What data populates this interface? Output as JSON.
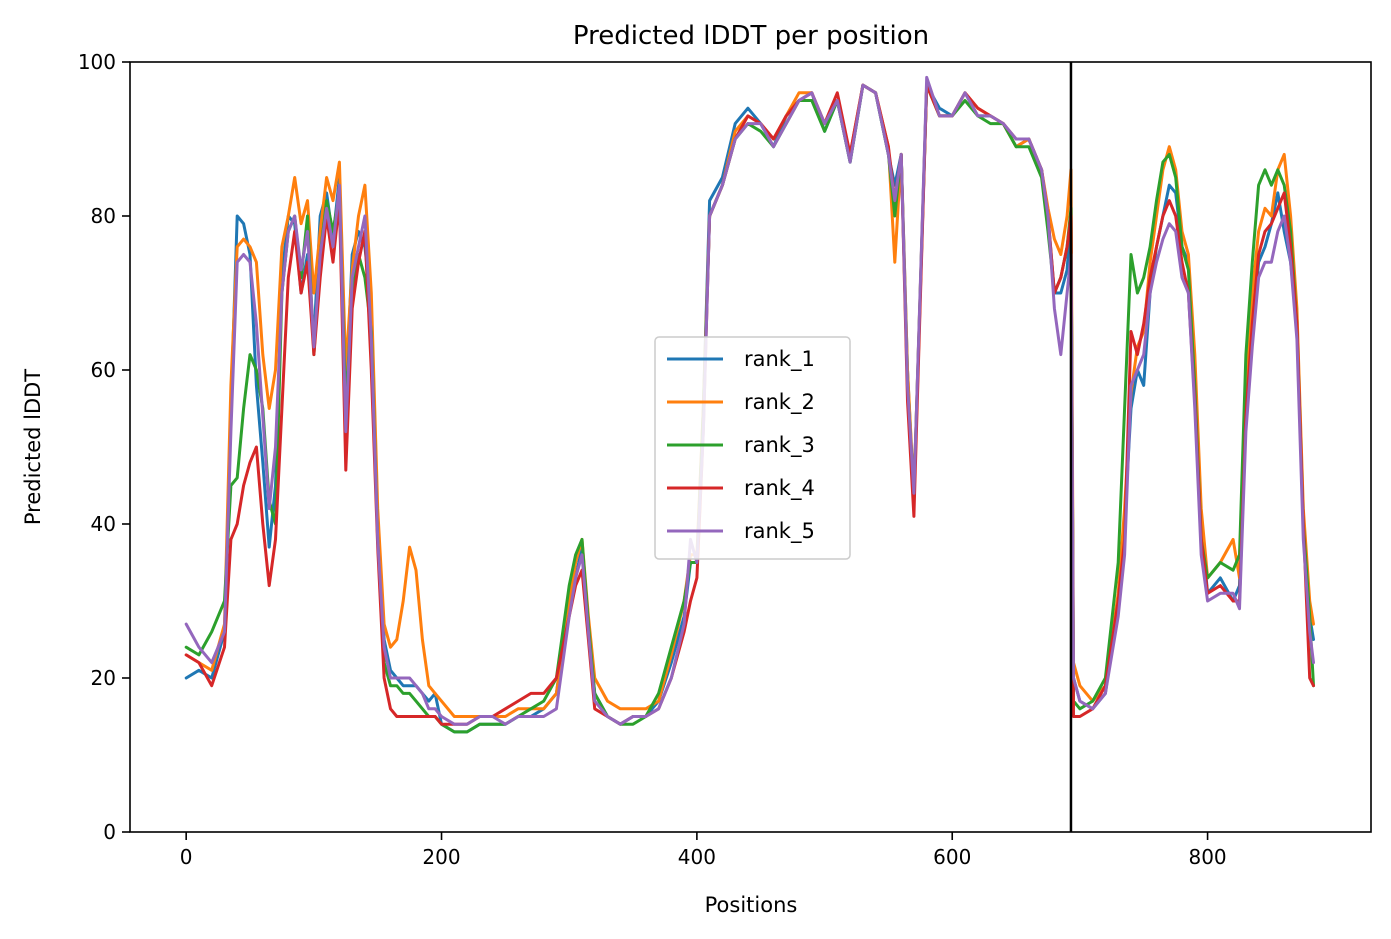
{
  "chart_data": {
    "type": "line",
    "title": "Predicted lDDT per position",
    "xlabel": "Positions",
    "ylabel": "Predicted lDDT",
    "xlim": [
      -44,
      928
    ],
    "ylim": [
      0,
      100
    ],
    "xticks": [
      0,
      200,
      400,
      600,
      800
    ],
    "yticks": [
      0,
      20,
      40,
      60,
      80,
      100
    ],
    "grid": false,
    "legend_position": "center",
    "vline_x": 693,
    "series": [
      {
        "name": "rank_1",
        "color": "#1f77b4",
        "x": [
          0,
          10,
          20,
          30,
          35,
          40,
          45,
          50,
          55,
          60,
          65,
          70,
          75,
          80,
          85,
          90,
          95,
          100,
          105,
          110,
          115,
          120,
          125,
          130,
          135,
          140,
          145,
          150,
          155,
          160,
          165,
          170,
          175,
          180,
          185,
          190,
          195,
          200,
          210,
          220,
          230,
          240,
          250,
          260,
          270,
          280,
          290,
          300,
          305,
          310,
          315,
          320,
          330,
          340,
          350,
          360,
          370,
          380,
          390,
          395,
          400,
          405,
          410,
          420,
          430,
          440,
          450,
          460,
          470,
          480,
          490,
          500,
          510,
          520,
          530,
          540,
          550,
          555,
          560,
          565,
          570,
          580,
          590,
          600,
          610,
          620,
          630,
          640,
          650,
          660,
          670,
          675,
          680,
          685,
          690,
          693,
          695,
          700,
          710,
          720,
          730,
          735,
          740,
          745,
          750,
          755,
          760,
          765,
          770,
          775,
          780,
          785,
          790,
          795,
          800,
          810,
          820,
          825,
          830,
          835,
          840,
          845,
          850,
          855,
          860,
          865,
          870,
          875,
          880,
          883
        ],
        "values": [
          20,
          21,
          20,
          26,
          55,
          80,
          79,
          75,
          58,
          48,
          37,
          45,
          72,
          80,
          79,
          70,
          75,
          64,
          80,
          83,
          77,
          85,
          56,
          75,
          78,
          76,
          68,
          40,
          25,
          21,
          20,
          19,
          19,
          19,
          18,
          17,
          18,
          14,
          13,
          13,
          14,
          14,
          14,
          15,
          15,
          16,
          18,
          30,
          33,
          37,
          26,
          18,
          15,
          14,
          15,
          15,
          17,
          22,
          28,
          35,
          35,
          55,
          82,
          85,
          92,
          94,
          92,
          89,
          93,
          95,
          96,
          91,
          95,
          87,
          97,
          96,
          88,
          84,
          88,
          60,
          43,
          97,
          94,
          93,
          96,
          93,
          93,
          92,
          89,
          90,
          86,
          80,
          70,
          70,
          73,
          80,
          20,
          17,
          16,
          18,
          30,
          40,
          55,
          60,
          58,
          70,
          76,
          80,
          84,
          83,
          76,
          74,
          60,
          40,
          31,
          33,
          30,
          32,
          55,
          65,
          74,
          76,
          79,
          83,
          78,
          74,
          66,
          40,
          28,
          25
        ]
      },
      {
        "name": "rank_2",
        "color": "#ff7f0e",
        "x": [
          0,
          10,
          20,
          30,
          35,
          40,
          45,
          50,
          55,
          60,
          65,
          70,
          75,
          80,
          85,
          90,
          95,
          100,
          105,
          110,
          115,
          120,
          125,
          130,
          135,
          140,
          145,
          150,
          155,
          160,
          165,
          170,
          175,
          180,
          185,
          190,
          195,
          200,
          210,
          220,
          230,
          240,
          250,
          260,
          270,
          280,
          290,
          300,
          305,
          310,
          315,
          320,
          330,
          340,
          350,
          360,
          370,
          380,
          390,
          395,
          400,
          405,
          410,
          420,
          430,
          440,
          450,
          460,
          470,
          480,
          490,
          500,
          510,
          520,
          530,
          540,
          550,
          555,
          560,
          565,
          570,
          580,
          590,
          600,
          610,
          620,
          630,
          640,
          650,
          660,
          670,
          675,
          680,
          685,
          690,
          693,
          695,
          700,
          710,
          720,
          730,
          735,
          740,
          745,
          750,
          755,
          760,
          765,
          770,
          775,
          780,
          785,
          790,
          795,
          800,
          810,
          820,
          825,
          830,
          835,
          840,
          845,
          850,
          855,
          860,
          865,
          870,
          875,
          880,
          883
        ],
        "values": [
          23,
          22,
          21,
          27,
          58,
          76,
          77,
          76,
          74,
          62,
          55,
          60,
          76,
          80,
          85,
          79,
          82,
          70,
          78,
          85,
          82,
          87,
          60,
          73,
          80,
          84,
          70,
          42,
          27,
          24,
          25,
          30,
          37,
          34,
          25,
          19,
          18,
          17,
          15,
          15,
          15,
          15,
          15,
          16,
          16,
          16,
          18,
          30,
          35,
          38,
          28,
          20,
          17,
          16,
          16,
          16,
          17,
          23,
          30,
          36,
          36,
          55,
          80,
          84,
          91,
          93,
          92,
          90,
          93,
          96,
          96,
          92,
          95,
          88,
          97,
          96,
          89,
          74,
          88,
          60,
          44,
          97,
          93,
          93,
          96,
          94,
          93,
          92,
          89,
          90,
          86,
          81,
          77,
          75,
          80,
          86,
          22,
          19,
          17,
          19,
          31,
          42,
          57,
          63,
          65,
          74,
          80,
          86,
          89,
          86,
          78,
          75,
          62,
          42,
          33,
          35,
          38,
          33,
          58,
          70,
          78,
          81,
          80,
          86,
          88,
          80,
          68,
          42,
          30,
          27
        ]
      },
      {
        "name": "rank_3",
        "color": "#2ca02c",
        "x": [
          0,
          10,
          20,
          30,
          35,
          40,
          45,
          50,
          55,
          60,
          65,
          70,
          75,
          80,
          85,
          90,
          95,
          100,
          105,
          110,
          115,
          120,
          125,
          130,
          135,
          140,
          145,
          150,
          155,
          160,
          165,
          170,
          175,
          180,
          185,
          190,
          195,
          200,
          210,
          220,
          230,
          240,
          250,
          260,
          270,
          280,
          290,
          300,
          305,
          310,
          315,
          320,
          330,
          340,
          350,
          360,
          370,
          380,
          390,
          395,
          400,
          405,
          410,
          420,
          430,
          440,
          450,
          460,
          470,
          480,
          490,
          500,
          510,
          520,
          530,
          540,
          550,
          555,
          560,
          565,
          570,
          580,
          590,
          600,
          610,
          620,
          630,
          640,
          650,
          660,
          670,
          675,
          680,
          685,
          690,
          693,
          695,
          700,
          710,
          720,
          730,
          735,
          740,
          745,
          750,
          755,
          760,
          765,
          770,
          775,
          780,
          785,
          790,
          795,
          800,
          810,
          820,
          825,
          830,
          835,
          840,
          845,
          850,
          855,
          860,
          865,
          870,
          875,
          880,
          883
        ],
        "values": [
          24,
          23,
          26,
          30,
          45,
          46,
          55,
          62,
          60,
          55,
          43,
          40,
          70,
          78,
          80,
          72,
          80,
          62,
          75,
          82,
          78,
          83,
          55,
          70,
          75,
          72,
          65,
          38,
          22,
          19,
          19,
          18,
          18,
          17,
          16,
          15,
          15,
          14,
          13,
          13,
          14,
          14,
          14,
          15,
          16,
          17,
          20,
          32,
          36,
          38,
          27,
          18,
          15,
          14,
          14,
          15,
          18,
          24,
          30,
          35,
          35,
          54,
          80,
          84,
          90,
          92,
          91,
          89,
          92,
          95,
          95,
          91,
          95,
          87,
          97,
          96,
          88,
          80,
          88,
          58,
          44,
          97,
          93,
          93,
          95,
          93,
          92,
          92,
          89,
          89,
          85,
          78,
          70,
          72,
          76,
          81,
          17,
          16,
          17,
          20,
          35,
          55,
          75,
          70,
          72,
          76,
          82,
          87,
          88,
          85,
          76,
          73,
          58,
          38,
          33,
          35,
          34,
          36,
          62,
          74,
          84,
          86,
          84,
          86,
          84,
          78,
          66,
          40,
          28,
          19
        ]
      },
      {
        "name": "rank_4",
        "color": "#d62728",
        "x": [
          0,
          10,
          20,
          30,
          35,
          40,
          45,
          50,
          55,
          60,
          65,
          70,
          75,
          80,
          85,
          90,
          95,
          100,
          105,
          110,
          115,
          120,
          125,
          130,
          135,
          140,
          145,
          150,
          155,
          160,
          165,
          170,
          175,
          180,
          185,
          190,
          195,
          200,
          210,
          220,
          230,
          240,
          250,
          260,
          270,
          280,
          290,
          300,
          305,
          310,
          315,
          320,
          330,
          340,
          350,
          360,
          370,
          380,
          390,
          395,
          400,
          405,
          410,
          420,
          430,
          440,
          450,
          460,
          470,
          480,
          490,
          500,
          510,
          520,
          530,
          540,
          550,
          555,
          560,
          565,
          570,
          580,
          590,
          600,
          610,
          620,
          630,
          640,
          650,
          660,
          670,
          675,
          680,
          685,
          690,
          693,
          695,
          700,
          710,
          720,
          730,
          735,
          740,
          745,
          750,
          755,
          760,
          765,
          770,
          775,
          780,
          785,
          790,
          795,
          800,
          810,
          820,
          825,
          830,
          835,
          840,
          845,
          850,
          855,
          860,
          865,
          870,
          875,
          880,
          883
        ],
        "values": [
          23,
          22,
          19,
          24,
          38,
          40,
          45,
          48,
          50,
          40,
          32,
          38,
          55,
          72,
          78,
          70,
          74,
          62,
          72,
          80,
          74,
          82,
          47,
          68,
          74,
          78,
          60,
          37,
          20,
          16,
          15,
          15,
          15,
          15,
          15,
          15,
          15,
          14,
          14,
          14,
          15,
          15,
          16,
          17,
          18,
          18,
          20,
          28,
          32,
          34,
          25,
          16,
          15,
          14,
          15,
          15,
          16,
          20,
          26,
          30,
          33,
          52,
          80,
          84,
          90,
          93,
          92,
          90,
          93,
          95,
          96,
          92,
          96,
          88,
          97,
          96,
          89,
          82,
          88,
          56,
          41,
          97,
          93,
          93,
          96,
          94,
          93,
          92,
          90,
          90,
          86,
          80,
          70,
          72,
          76,
          80,
          15,
          15,
          16,
          19,
          30,
          38,
          65,
          62,
          66,
          72,
          76,
          80,
          82,
          80,
          74,
          70,
          56,
          38,
          31,
          32,
          30,
          30,
          54,
          66,
          75,
          78,
          79,
          81,
          83,
          76,
          66,
          40,
          20,
          19
        ]
      },
      {
        "name": "rank_5",
        "color": "#9467bd",
        "x": [
          0,
          10,
          20,
          30,
          35,
          40,
          45,
          50,
          55,
          60,
          65,
          70,
          75,
          80,
          85,
          90,
          95,
          100,
          105,
          110,
          115,
          120,
          125,
          130,
          135,
          140,
          145,
          150,
          155,
          160,
          165,
          170,
          175,
          180,
          185,
          190,
          195,
          200,
          210,
          220,
          230,
          240,
          250,
          260,
          270,
          280,
          290,
          300,
          305,
          310,
          315,
          320,
          330,
          340,
          350,
          360,
          370,
          380,
          390,
          395,
          400,
          405,
          410,
          420,
          430,
          440,
          450,
          460,
          470,
          480,
          490,
          500,
          510,
          520,
          530,
          540,
          550,
          555,
          560,
          565,
          570,
          580,
          590,
          600,
          610,
          620,
          630,
          640,
          650,
          660,
          670,
          675,
          680,
          685,
          690,
          693,
          695,
          700,
          710,
          720,
          730,
          735,
          740,
          745,
          750,
          755,
          760,
          765,
          770,
          775,
          780,
          785,
          790,
          795,
          800,
          810,
          820,
          825,
          830,
          835,
          840,
          845,
          850,
          855,
          860,
          865,
          870,
          875,
          880,
          883
        ],
        "values": [
          27,
          24,
          22,
          26,
          52,
          74,
          75,
          74,
          66,
          54,
          42,
          50,
          70,
          78,
          80,
          73,
          78,
          63,
          75,
          81,
          76,
          84,
          52,
          72,
          76,
          80,
          64,
          38,
          24,
          20,
          20,
          20,
          20,
          19,
          18,
          16,
          16,
          15,
          14,
          14,
          15,
          15,
          14,
          15,
          15,
          15,
          16,
          28,
          33,
          36,
          26,
          17,
          15,
          14,
          15,
          15,
          16,
          20,
          27,
          38,
          35,
          52,
          80,
          84,
          90,
          92,
          92,
          89,
          92,
          95,
          96,
          92,
          95,
          87,
          97,
          96,
          88,
          82,
          88,
          58,
          44,
          98,
          93,
          93,
          96,
          93,
          93,
          92,
          90,
          90,
          86,
          80,
          68,
          62,
          70,
          75,
          20,
          17,
          16,
          18,
          28,
          36,
          58,
          60,
          62,
          70,
          74,
          77,
          79,
          78,
          72,
          70,
          55,
          36,
          30,
          31,
          31,
          29,
          52,
          63,
          72,
          74,
          74,
          78,
          80,
          74,
          64,
          38,
          26,
          22
        ]
      }
    ]
  }
}
